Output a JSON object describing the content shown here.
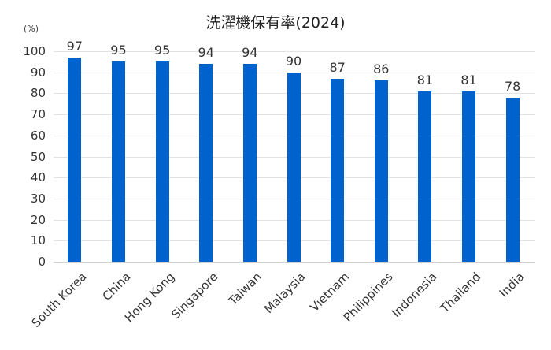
{
  "chart_data": {
    "type": "bar",
    "title": "洗濯機保有率(2024)",
    "ylabel": "(%)",
    "xlabel": "",
    "ylim": [
      0,
      100
    ],
    "yticks": [
      0,
      10,
      20,
      30,
      40,
      50,
      60,
      70,
      80,
      90,
      100
    ],
    "grid": true,
    "legend": null,
    "bar_color": "#0062cc",
    "categories": [
      "South Korea",
      "China",
      "Hong Kong",
      "Singapore",
      "Taiwan",
      "Malaysia",
      "Vietnam",
      "Philippines",
      "Indonesia",
      "Thailand",
      "India"
    ],
    "values": [
      97,
      95,
      95,
      94,
      94,
      90,
      87,
      86,
      81,
      81,
      78
    ]
  }
}
